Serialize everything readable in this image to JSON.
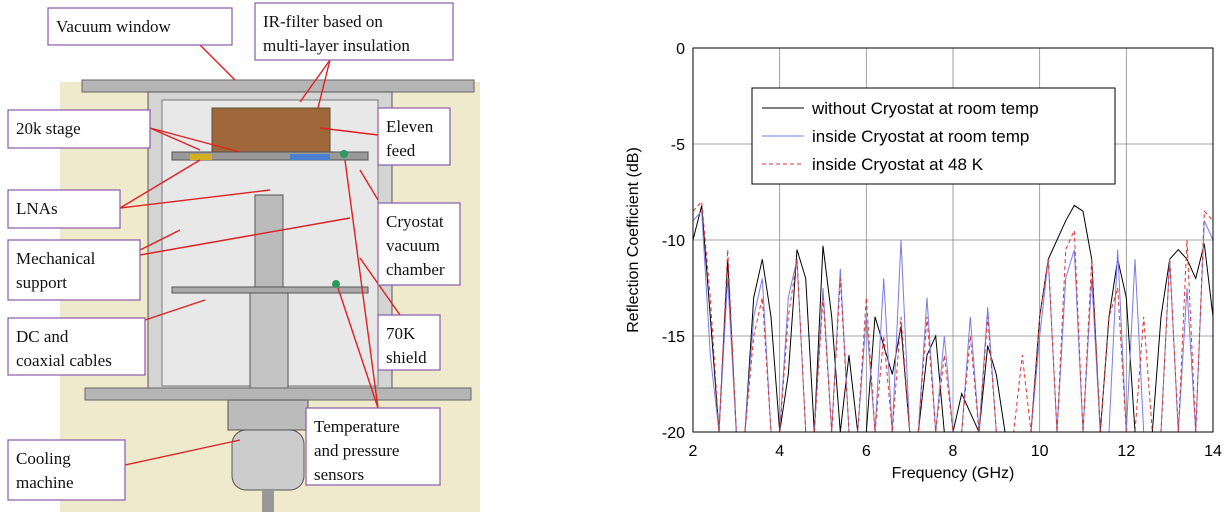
{
  "diagram": {
    "labels": [
      {
        "lines": [
          "Vacuum window"
        ]
      },
      {
        "lines": [
          "IR-filter based on",
          "multi-layer insulation"
        ]
      },
      {
        "lines": [
          "20k stage"
        ]
      },
      {
        "lines": [
          "Eleven",
          "feed"
        ]
      },
      {
        "lines": [
          "LNAs"
        ]
      },
      {
        "lines": [
          "Cryostat",
          "vacuum",
          "chamber"
        ]
      },
      {
        "lines": [
          "Mechanical",
          "support"
        ]
      },
      {
        "lines": [
          "DC and",
          "coaxial cables"
        ]
      },
      {
        "lines": [
          "70K",
          "shield"
        ]
      },
      {
        "lines": [
          "Temperature",
          "and pressure",
          "sensors"
        ]
      },
      {
        "lines": [
          "Cooling",
          "machine"
        ]
      }
    ]
  },
  "chart_data": {
    "type": "line",
    "x_label": "Frequency (GHz)",
    "y_label": "Reflection Coefficient (dB)",
    "xlim": [
      2,
      14
    ],
    "xticks": [
      2,
      4,
      6,
      8,
      10,
      12,
      14
    ],
    "ylim": [
      -20,
      0
    ],
    "yticks": [
      0,
      -5,
      -10,
      -15,
      -20
    ],
    "grid": true,
    "legend": "upper center",
    "x": [
      2.0,
      2.2,
      2.4,
      2.6,
      2.8,
      3.0,
      3.2,
      3.4,
      3.6,
      3.8,
      4.0,
      4.2,
      4.4,
      4.6,
      4.8,
      5.0,
      5.2,
      5.4,
      5.6,
      5.8,
      6.0,
      6.2,
      6.4,
      6.6,
      6.8,
      7.0,
      7.2,
      7.4,
      7.6,
      7.8,
      8.0,
      8.2,
      8.4,
      8.6,
      8.8,
      9.0,
      9.2,
      9.4,
      9.6,
      9.8,
      10.0,
      10.2,
      10.4,
      10.6,
      10.8,
      11.0,
      11.2,
      11.4,
      11.6,
      11.8,
      12.0,
      12.2,
      12.4,
      12.6,
      12.8,
      13.0,
      13.2,
      13.4,
      13.6,
      13.8,
      14.0
    ],
    "series": [
      {
        "name": "without Cryostat at room temp",
        "color": "#000000",
        "dashed": false,
        "values": [
          -10,
          -8.2,
          -14,
          -20,
          -11,
          -20,
          -20,
          -13,
          -11,
          -14,
          -20,
          -17,
          -10.5,
          -12,
          -20,
          -10.3,
          -14,
          -20,
          -16,
          -20,
          -20,
          -14,
          -15.5,
          -17,
          -14.5,
          -20,
          -20,
          -16,
          -15,
          -20,
          -20,
          -18,
          -19,
          -20,
          -15.5,
          -17,
          -20,
          -20,
          -20,
          -20,
          -14,
          -11,
          -10,
          -9,
          -8.2,
          -8.5,
          -11,
          -20,
          -14,
          -11,
          -13,
          -20,
          -20,
          -20,
          -14,
          -11,
          -10.5,
          -11,
          -12,
          -10.2,
          -14
        ]
      },
      {
        "name": "inside Cryostat at room temp",
        "color": "#7b7be8",
        "dashed": false,
        "values": [
          -9,
          -8.5,
          -16,
          -20,
          -12,
          -20,
          -20,
          -14,
          -12,
          -20,
          -20,
          -13,
          -11,
          -20,
          -20,
          -12.5,
          -20,
          -11.5,
          -20,
          -20,
          -14,
          -20,
          -12,
          -20,
          -10,
          -20,
          -20,
          -13,
          -20,
          -15,
          -20,
          -20,
          -14,
          -20,
          -13.5,
          -20,
          -20,
          -20,
          -20,
          -20,
          -15,
          -11,
          -20,
          -12,
          -10.5,
          -20,
          -12,
          -20,
          -20,
          -10.5,
          -20,
          -11,
          -20,
          -20,
          -20,
          -11,
          -20,
          -12.5,
          -20,
          -9,
          -10
        ]
      },
      {
        "name": "inside Cryostat at 48 K",
        "color": "#dd3333",
        "dashed": true,
        "values": [
          -8.5,
          -8,
          -13,
          -20,
          -10.5,
          -20,
          -20,
          -15,
          -13,
          -20,
          -20,
          -14,
          -11,
          -20,
          -20,
          -13,
          -20,
          -12,
          -20,
          -20,
          -13,
          -20,
          -15,
          -20,
          -14,
          -20,
          -20,
          -14,
          -20,
          -16,
          -20,
          -20,
          -15,
          -20,
          -14,
          -20,
          -20,
          -20,
          -16,
          -20,
          -14,
          -11,
          -20,
          -10.5,
          -9.5,
          -20,
          -11,
          -20,
          -14,
          -12.5,
          -20,
          -20,
          -14,
          -20,
          -20,
          -11,
          -20,
          -10,
          -20,
          -8.5,
          -9
        ]
      }
    ]
  }
}
